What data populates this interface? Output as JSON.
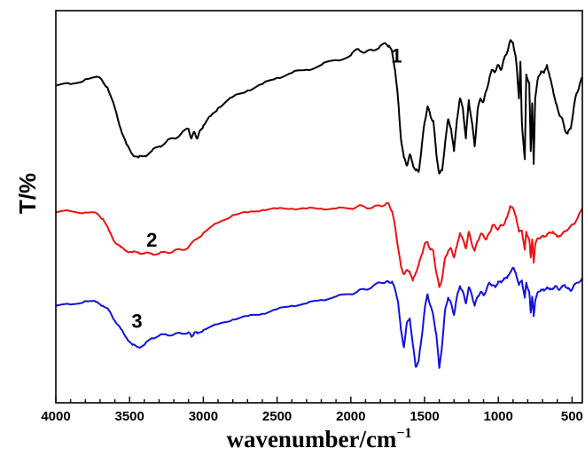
{
  "chart_data": {
    "type": "line",
    "title": "",
    "xlabel_main": "wavenumber/cm",
    "xlabel_sup": "−1",
    "ylabel": "T/%",
    "xlim": [
      4000,
      430
    ],
    "x_reversed": true,
    "x_ticks": [
      4000,
      3500,
      3000,
      2500,
      2000,
      1500,
      1000,
      500
    ],
    "y_ticks": [],
    "grid": false,
    "legend": "none",
    "series": [
      {
        "name": "1",
        "color": "#000000",
        "points": [
          [
            4000,
            63
          ],
          [
            3900,
            64
          ],
          [
            3800,
            67
          ],
          [
            3700,
            68
          ],
          [
            3650,
            62
          ],
          [
            3600,
            49
          ],
          [
            3560,
            36
          ],
          [
            3520,
            26
          ],
          [
            3480,
            20
          ],
          [
            3440,
            18
          ],
          [
            3400,
            19
          ],
          [
            3350,
            22
          ],
          [
            3300,
            25
          ],
          [
            3250,
            28
          ],
          [
            3200,
            30
          ],
          [
            3150,
            33
          ],
          [
            3100,
            36
          ],
          [
            3080,
            30
          ],
          [
            3060,
            34
          ],
          [
            3040,
            30
          ],
          [
            3020,
            35
          ],
          [
            3000,
            38
          ],
          [
            2950,
            44
          ],
          [
            2900,
            49
          ],
          [
            2800,
            56
          ],
          [
            2700,
            60
          ],
          [
            2600,
            64
          ],
          [
            2500,
            68
          ],
          [
            2400,
            71
          ],
          [
            2300,
            73
          ],
          [
            2200,
            76
          ],
          [
            2100,
            79
          ],
          [
            2000,
            82
          ],
          [
            1950,
            86
          ],
          [
            1900,
            84
          ],
          [
            1850,
            85
          ],
          [
            1800,
            88
          ],
          [
            1760,
            89
          ],
          [
            1740,
            88
          ],
          [
            1720,
            84
          ],
          [
            1700,
            73
          ],
          [
            1680,
            55
          ],
          [
            1660,
            30
          ],
          [
            1640,
            18
          ],
          [
            1620,
            13
          ],
          [
            1600,
            20
          ],
          [
            1580,
            14
          ],
          [
            1560,
            10
          ],
          [
            1540,
            9
          ],
          [
            1520,
            24
          ],
          [
            1500,
            40
          ],
          [
            1480,
            50
          ],
          [
            1460,
            44
          ],
          [
            1440,
            41
          ],
          [
            1420,
            20
          ],
          [
            1400,
            8
          ],
          [
            1380,
            10
          ],
          [
            1360,
            28
          ],
          [
            1340,
            42
          ],
          [
            1320,
            36
          ],
          [
            1300,
            22
          ],
          [
            1280,
            42
          ],
          [
            1260,
            55
          ],
          [
            1240,
            49
          ],
          [
            1220,
            30
          ],
          [
            1200,
            54
          ],
          [
            1180,
            41
          ],
          [
            1160,
            25
          ],
          [
            1140,
            48
          ],
          [
            1120,
            55
          ],
          [
            1100,
            53
          ],
          [
            1080,
            60
          ],
          [
            1060,
            68
          ],
          [
            1040,
            73
          ],
          [
            1020,
            72
          ],
          [
            1000,
            76
          ],
          [
            980,
            73
          ],
          [
            960,
            80
          ],
          [
            940,
            84
          ],
          [
            920,
            91
          ],
          [
            900,
            90
          ],
          [
            880,
            80
          ],
          [
            860,
            55
          ],
          [
            850,
            78
          ],
          [
            840,
            40
          ],
          [
            820,
            17
          ],
          [
            810,
            70
          ],
          [
            790,
            65
          ],
          [
            780,
            22
          ],
          [
            770,
            52
          ],
          [
            760,
            14
          ],
          [
            750,
            55
          ],
          [
            730,
            68
          ],
          [
            710,
            72
          ],
          [
            690,
            71
          ],
          [
            670,
            76
          ],
          [
            650,
            68
          ],
          [
            630,
            61
          ],
          [
            610,
            52
          ],
          [
            590,
            46
          ],
          [
            570,
            43
          ],
          [
            550,
            36
          ],
          [
            530,
            33
          ],
          [
            510,
            36
          ],
          [
            490,
            48
          ],
          [
            470,
            58
          ],
          [
            450,
            63
          ],
          [
            430,
            68
          ]
        ]
      },
      {
        "name": "2",
        "color": "#ee1111",
        "points": [
          [
            4000,
            59
          ],
          [
            3900,
            60
          ],
          [
            3800,
            59
          ],
          [
            3720,
            58
          ],
          [
            3680,
            54
          ],
          [
            3640,
            45
          ],
          [
            3600,
            36
          ],
          [
            3560,
            32
          ],
          [
            3520,
            29
          ],
          [
            3480,
            28
          ],
          [
            3440,
            28
          ],
          [
            3400,
            27
          ],
          [
            3350,
            27
          ],
          [
            3300,
            27
          ],
          [
            3250,
            28
          ],
          [
            3200,
            29
          ],
          [
            3150,
            30
          ],
          [
            3100,
            32
          ],
          [
            3050,
            38
          ],
          [
            3000,
            43
          ],
          [
            2900,
            51
          ],
          [
            2800,
            57
          ],
          [
            2700,
            59
          ],
          [
            2600,
            61
          ],
          [
            2500,
            62
          ],
          [
            2400,
            62
          ],
          [
            2300,
            62
          ],
          [
            2200,
            62
          ],
          [
            2100,
            62
          ],
          [
            2000,
            62
          ],
          [
            1950,
            64
          ],
          [
            1900,
            63
          ],
          [
            1850,
            63
          ],
          [
            1800,
            64
          ],
          [
            1760,
            66
          ],
          [
            1740,
            65
          ],
          [
            1720,
            60
          ],
          [
            1700,
            48
          ],
          [
            1680,
            32
          ],
          [
            1660,
            17
          ],
          [
            1640,
            11
          ],
          [
            1620,
            14
          ],
          [
            1600,
            13
          ],
          [
            1580,
            6
          ],
          [
            1560,
            12
          ],
          [
            1540,
            18
          ],
          [
            1520,
            26
          ],
          [
            1500,
            34
          ],
          [
            1480,
            36
          ],
          [
            1460,
            30
          ],
          [
            1440,
            29
          ],
          [
            1420,
            12
          ],
          [
            1400,
            1
          ],
          [
            1380,
            8
          ],
          [
            1360,
            24
          ],
          [
            1340,
            29
          ],
          [
            1320,
            31
          ],
          [
            1300,
            24
          ],
          [
            1280,
            33
          ],
          [
            1260,
            43
          ],
          [
            1240,
            38
          ],
          [
            1220,
            31
          ],
          [
            1200,
            44
          ],
          [
            1180,
            35
          ],
          [
            1160,
            29
          ],
          [
            1140,
            37
          ],
          [
            1120,
            42
          ],
          [
            1100,
            41
          ],
          [
            1080,
            38
          ],
          [
            1060,
            43
          ],
          [
            1040,
            49
          ],
          [
            1020,
            48
          ],
          [
            1000,
            46
          ],
          [
            980,
            49
          ],
          [
            960,
            50
          ],
          [
            940,
            55
          ],
          [
            920,
            64
          ],
          [
            900,
            62
          ],
          [
            880,
            56
          ],
          [
            860,
            44
          ],
          [
            840,
            45
          ],
          [
            820,
            30
          ],
          [
            810,
            44
          ],
          [
            790,
            38
          ],
          [
            780,
            24
          ],
          [
            770,
            38
          ],
          [
            760,
            20
          ],
          [
            750,
            34
          ],
          [
            730,
            39
          ],
          [
            710,
            40
          ],
          [
            690,
            40
          ],
          [
            670,
            42
          ],
          [
            650,
            43
          ],
          [
            630,
            44
          ],
          [
            600,
            40
          ],
          [
            580,
            41
          ],
          [
            560,
            43
          ],
          [
            540,
            45
          ],
          [
            510,
            48
          ],
          [
            490,
            50
          ],
          [
            460,
            55
          ],
          [
            430,
            62
          ]
        ]
      },
      {
        "name": "3",
        "color": "#1111dd",
        "points": [
          [
            4000,
            58
          ],
          [
            3900,
            59
          ],
          [
            3800,
            62
          ],
          [
            3720,
            61
          ],
          [
            3680,
            58
          ],
          [
            3640,
            54
          ],
          [
            3600,
            45
          ],
          [
            3560,
            38
          ],
          [
            3520,
            30
          ],
          [
            3480,
            24
          ],
          [
            3440,
            22
          ],
          [
            3400,
            24
          ],
          [
            3350,
            30
          ],
          [
            3300,
            32
          ],
          [
            3250,
            33
          ],
          [
            3200,
            33
          ],
          [
            3150,
            34
          ],
          [
            3100,
            35
          ],
          [
            3080,
            31
          ],
          [
            3060,
            35
          ],
          [
            3040,
            34
          ],
          [
            3000,
            37
          ],
          [
            2900,
            42
          ],
          [
            2800,
            46
          ],
          [
            2700,
            49
          ],
          [
            2600,
            51
          ],
          [
            2500,
            55
          ],
          [
            2400,
            58
          ],
          [
            2300,
            60
          ],
          [
            2200,
            63
          ],
          [
            2100,
            66
          ],
          [
            2000,
            68
          ],
          [
            1950,
            71
          ],
          [
            1900,
            72
          ],
          [
            1850,
            75
          ],
          [
            1800,
            78
          ],
          [
            1760,
            79
          ],
          [
            1740,
            78
          ],
          [
            1720,
            79
          ],
          [
            1700,
            72
          ],
          [
            1680,
            62
          ],
          [
            1660,
            37
          ],
          [
            1640,
            22
          ],
          [
            1620,
            43
          ],
          [
            1600,
            47
          ],
          [
            1580,
            25
          ],
          [
            1560,
            5
          ],
          [
            1540,
            10
          ],
          [
            1520,
            30
          ],
          [
            1500,
            54
          ],
          [
            1480,
            68
          ],
          [
            1460,
            58
          ],
          [
            1440,
            49
          ],
          [
            1420,
            33
          ],
          [
            1400,
            4
          ],
          [
            1380,
            25
          ],
          [
            1360,
            55
          ],
          [
            1340,
            65
          ],
          [
            1320,
            60
          ],
          [
            1300,
            50
          ],
          [
            1280,
            66
          ],
          [
            1260,
            75
          ],
          [
            1240,
            70
          ],
          [
            1220,
            60
          ],
          [
            1200,
            74
          ],
          [
            1180,
            68
          ],
          [
            1160,
            58
          ],
          [
            1140,
            66
          ],
          [
            1120,
            70
          ],
          [
            1100,
            67
          ],
          [
            1080,
            72
          ],
          [
            1060,
            78
          ],
          [
            1040,
            76
          ],
          [
            1020,
            74
          ],
          [
            1000,
            79
          ],
          [
            980,
            78
          ],
          [
            960,
            82
          ],
          [
            940,
            82
          ],
          [
            920,
            87
          ],
          [
            900,
            91
          ],
          [
            880,
            86
          ],
          [
            860,
            76
          ],
          [
            840,
            80
          ],
          [
            820,
            65
          ],
          [
            810,
            78
          ],
          [
            790,
            70
          ],
          [
            780,
            52
          ],
          [
            770,
            66
          ],
          [
            760,
            49
          ],
          [
            750,
            62
          ],
          [
            730,
            70
          ],
          [
            710,
            72
          ],
          [
            690,
            71
          ],
          [
            670,
            74
          ],
          [
            650,
            72
          ],
          [
            630,
            73
          ],
          [
            610,
            75
          ],
          [
            590,
            72
          ],
          [
            570,
            74
          ],
          [
            550,
            76
          ],
          [
            530,
            73
          ],
          [
            510,
            71
          ],
          [
            490,
            75
          ],
          [
            460,
            78
          ],
          [
            430,
            82
          ]
        ]
      }
    ]
  }
}
